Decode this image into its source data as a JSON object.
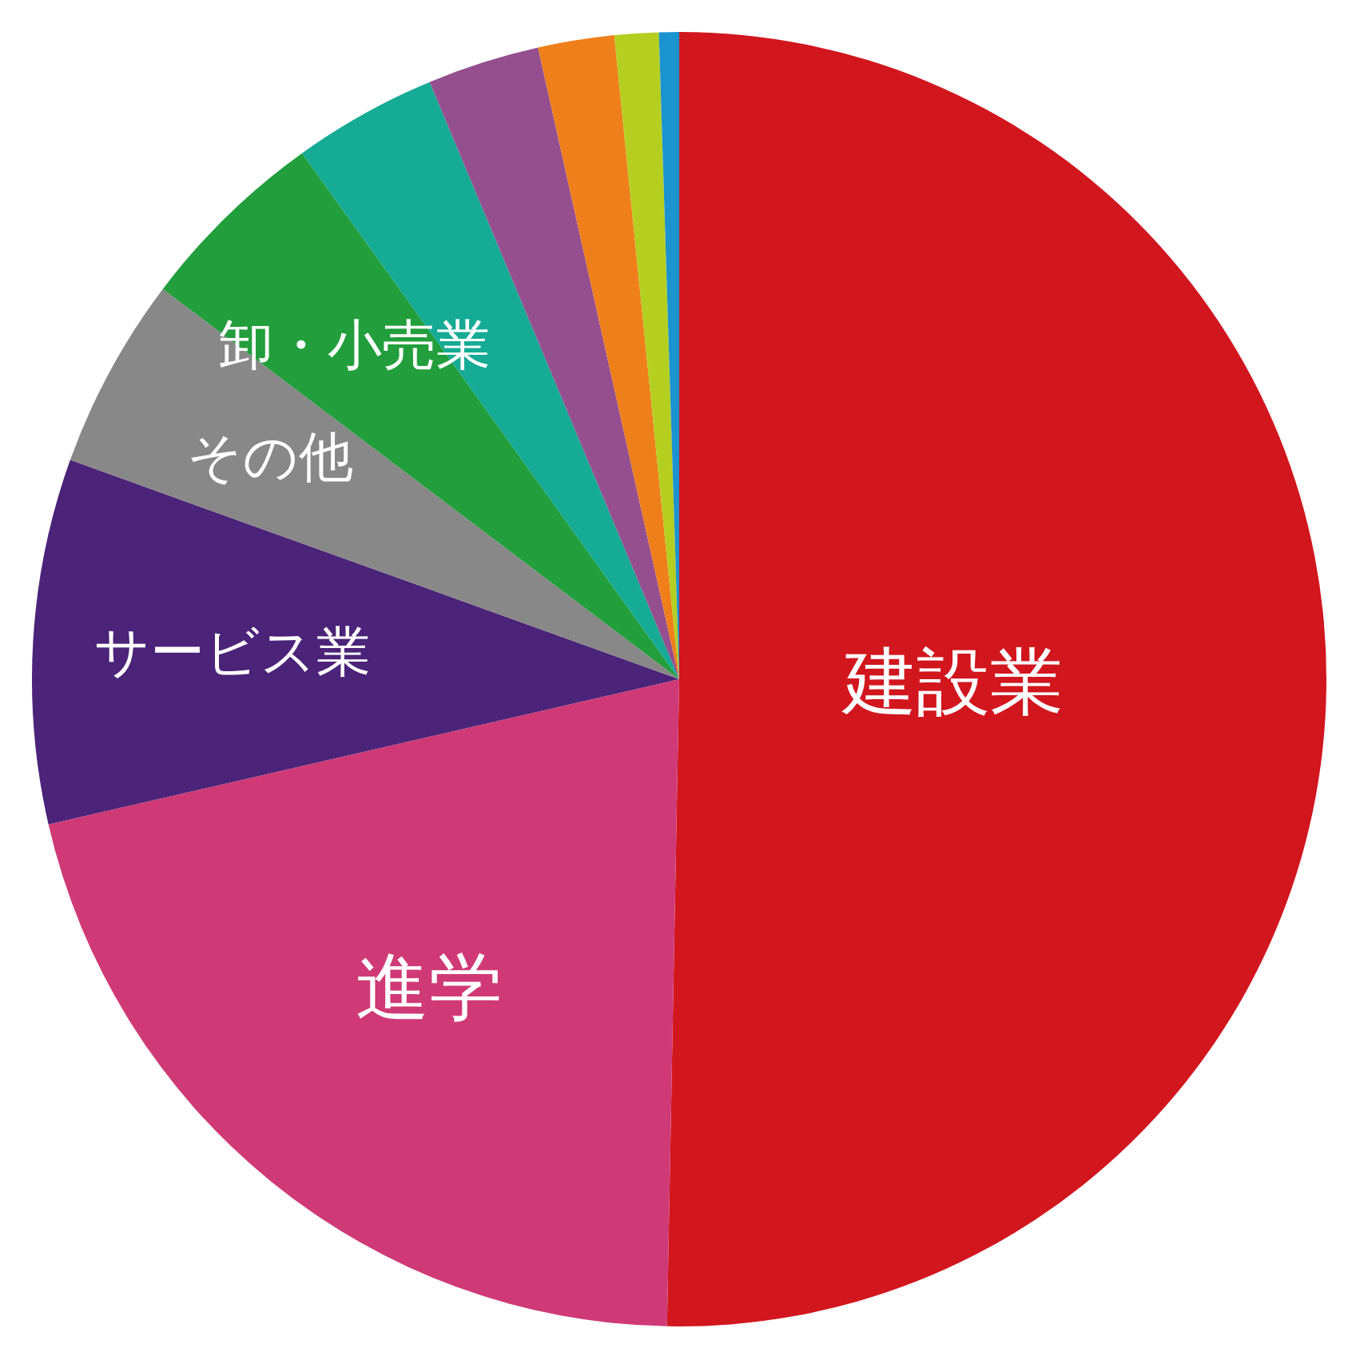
{
  "chart_data": {
    "type": "pie",
    "categories": [
      "建設業",
      "進学",
      "サービス業",
      "その他",
      "卸・小売業",
      null,
      null,
      null,
      null,
      null
    ],
    "values": [
      50.3,
      21.1,
      9.1,
      4.8,
      4.8,
      3.6,
      2.8,
      1.9,
      1.1,
      0.5
    ],
    "colors": [
      "#d2161e",
      "#cf3a76",
      "#4b2378",
      "#888888",
      "#229e3c",
      "#15ab95",
      "#954f8f",
      "#ef7f1a",
      "#b5cf21",
      "#1b93cf"
    ]
  }
}
